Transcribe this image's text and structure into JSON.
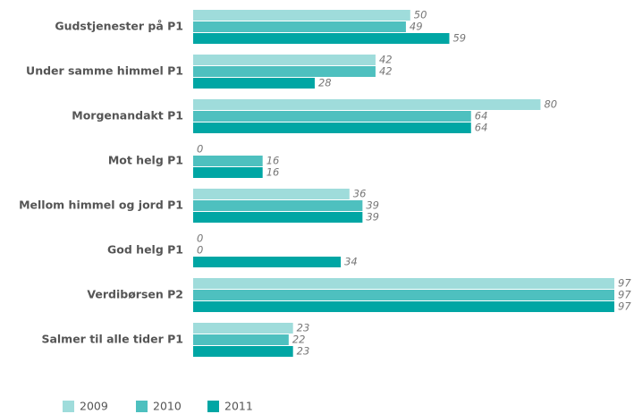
{
  "chart_data": {
    "type": "bar",
    "orientation": "horizontal",
    "categories": [
      "Gudstjenester på P1",
      "Under samme himmel P1",
      "Morgenandakt P1",
      "Mot helg P1",
      "Mellom himmel og jord P1",
      "God helg P1",
      "Verdibørsen P2",
      "Salmer til alle tider P1"
    ],
    "series": [
      {
        "name": "2009",
        "color": "#9fdcdb",
        "values": [
          50,
          42,
          80,
          0,
          36,
          0,
          97,
          23
        ]
      },
      {
        "name": "2010",
        "color": "#4ec0bf",
        "values": [
          49,
          42,
          64,
          16,
          39,
          0,
          97,
          22
        ]
      },
      {
        "name": "2011",
        "color": "#00a6a4",
        "values": [
          59,
          28,
          64,
          16,
          39,
          34,
          97,
          23
        ]
      }
    ],
    "xlim": [
      0,
      97
    ],
    "legend": "bottom-left"
  }
}
